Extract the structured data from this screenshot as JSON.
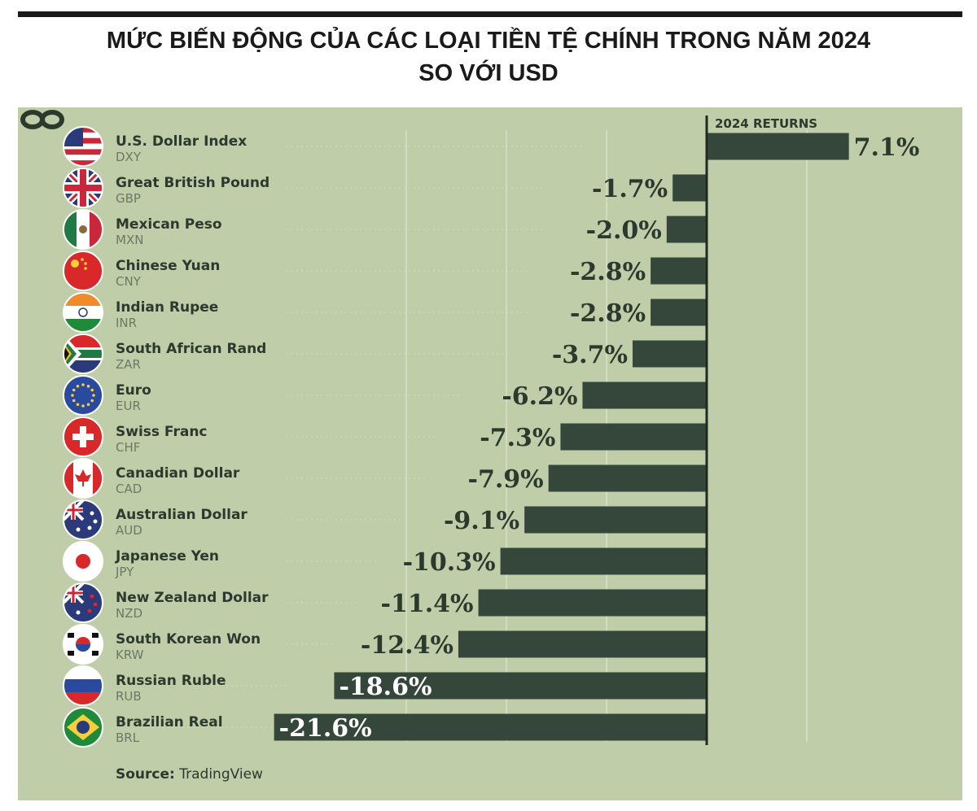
{
  "header": {
    "title_line1": "MỨC BIẾN ĐỘNG CỦA CÁC LOẠI TIỀN TỆ CHÍNH TRONG NĂM 2024",
    "title_line2": "SO VỚI USD"
  },
  "chart_data": {
    "type": "bar",
    "orientation": "horizontal",
    "column_label": "2024 RETURNS",
    "categories": [
      {
        "name": "U.S. Dollar Index",
        "code": "DXY",
        "flag": "us-flag-icon"
      },
      {
        "name": "Great British Pound",
        "code": "GBP",
        "flag": "uk-flag-icon"
      },
      {
        "name": "Mexican Peso",
        "code": "MXN",
        "flag": "mexico-flag-icon"
      },
      {
        "name": "Chinese Yuan",
        "code": "CNY",
        "flag": "china-flag-icon"
      },
      {
        "name": "Indian Rupee",
        "code": "INR",
        "flag": "india-flag-icon"
      },
      {
        "name": "South African Rand",
        "code": "ZAR",
        "flag": "south-africa-flag-icon"
      },
      {
        "name": "Euro",
        "code": "EUR",
        "flag": "eu-flag-icon"
      },
      {
        "name": "Swiss Franc",
        "code": "CHF",
        "flag": "switzerland-flag-icon"
      },
      {
        "name": "Canadian Dollar",
        "code": "CAD",
        "flag": "canada-flag-icon"
      },
      {
        "name": "Australian Dollar",
        "code": "AUD",
        "flag": "australia-flag-icon"
      },
      {
        "name": "Japanese Yen",
        "code": "JPY",
        "flag": "japan-flag-icon"
      },
      {
        "name": "New Zealand Dollar",
        "code": "NZD",
        "flag": "new-zealand-flag-icon"
      },
      {
        "name": "South Korean Won",
        "code": "KRW",
        "flag": "south-korea-flag-icon"
      },
      {
        "name": "Russian Ruble",
        "code": "RUB",
        "flag": "russia-flag-icon"
      },
      {
        "name": "Brazilian Real",
        "code": "BRL",
        "flag": "brazil-flag-icon"
      }
    ],
    "values": [
      7.1,
      -1.7,
      -2.0,
      -2.8,
      -2.8,
      -3.7,
      -6.2,
      -7.3,
      -7.9,
      -9.1,
      -10.3,
      -11.4,
      -12.4,
      -18.6,
      -21.6
    ],
    "labels": [
      "7.1%",
      "-1.7%",
      "-2.0%",
      "-2.8%",
      "-2.8%",
      "-3.7%",
      "-6.2%",
      "-7.3%",
      "-7.9%",
      "-9.1%",
      "-10.3%",
      "-11.4%",
      "-12.4%",
      "-18.6%",
      "-21.6%"
    ],
    "unit": "%",
    "xlim": [
      -22,
      12
    ],
    "grid": true,
    "colors": {
      "bar": "#34473a",
      "background": "#c0cda9",
      "gridline": "#d3dcc0",
      "text": "#2b3a2c",
      "inside_label": "#ffffff"
    }
  },
  "footer": {
    "source_label": "Source:",
    "source_value": "TradingView",
    "logo_icon": "visual-capitalist-logo-icon"
  }
}
